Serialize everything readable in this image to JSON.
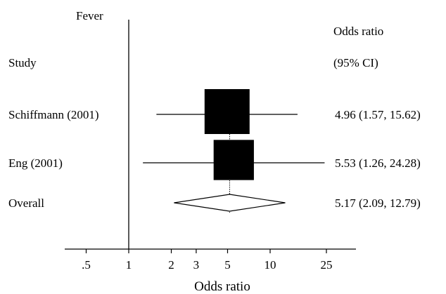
{
  "chart_data": {
    "type": "forest",
    "title": "Fever",
    "xlabel": "Odds ratio",
    "scale": "log",
    "xlim": [
      0.35,
      35
    ],
    "reference_value": 1,
    "ticks": [
      {
        "value": 0.5,
        "label": ".5"
      },
      {
        "value": 1,
        "label": "1"
      },
      {
        "value": 2,
        "label": "2"
      },
      {
        "value": 3,
        "label": "3"
      },
      {
        "value": 5,
        "label": "5"
      },
      {
        "value": 10,
        "label": "10"
      },
      {
        "value": 25,
        "label": "25"
      }
    ],
    "column_headers": {
      "study": "Study",
      "estimate_line1": "Odds ratio",
      "estimate_line2": "(95% CI)"
    },
    "studies": [
      {
        "name": "Schiffmann (2001)",
        "or": 4.96,
        "lower": 1.57,
        "upper": 15.62,
        "label": "4.96 (1.57, 15.62)",
        "weight": 1.0
      },
      {
        "name": "Eng (2001)",
        "or": 5.53,
        "lower": 1.26,
        "upper": 24.28,
        "label": "5.53 (1.26, 24.28)",
        "weight": 0.8
      }
    ],
    "overall": {
      "name": "Overall",
      "or": 5.17,
      "lower": 2.09,
      "upper": 12.79,
      "label": "5.17 (2.09, 12.79)"
    }
  }
}
